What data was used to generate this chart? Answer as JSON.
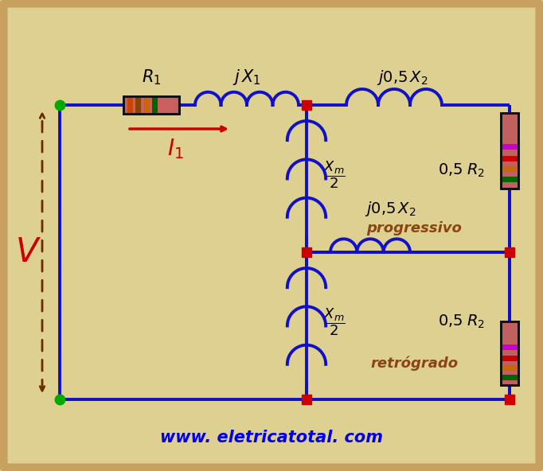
{
  "bg_color": "#ddd090",
  "border_color": "#c8a060",
  "wire_color": "#1010cc",
  "node_color": "#00aa00",
  "junction_color": "#cc0000",
  "label_color": "#000000",
  "progressivo_color": "#8B4513",
  "retrograde_color": "#8B4513",
  "V_color": "#cc0000",
  "I1_color": "#cc0000",
  "arrow_color": "#cc0000",
  "dashed_color": "#6B2A00",
  "website_color": "#0000ee",
  "website": "www. eletricatotal. com",
  "R1_bands": [
    "#cc0000",
    "#cc4400",
    "#aa8800",
    "#008800"
  ],
  "R2_bands": [
    "#006600",
    "#cc6600",
    "#cc0000",
    "#cc00cc"
  ]
}
